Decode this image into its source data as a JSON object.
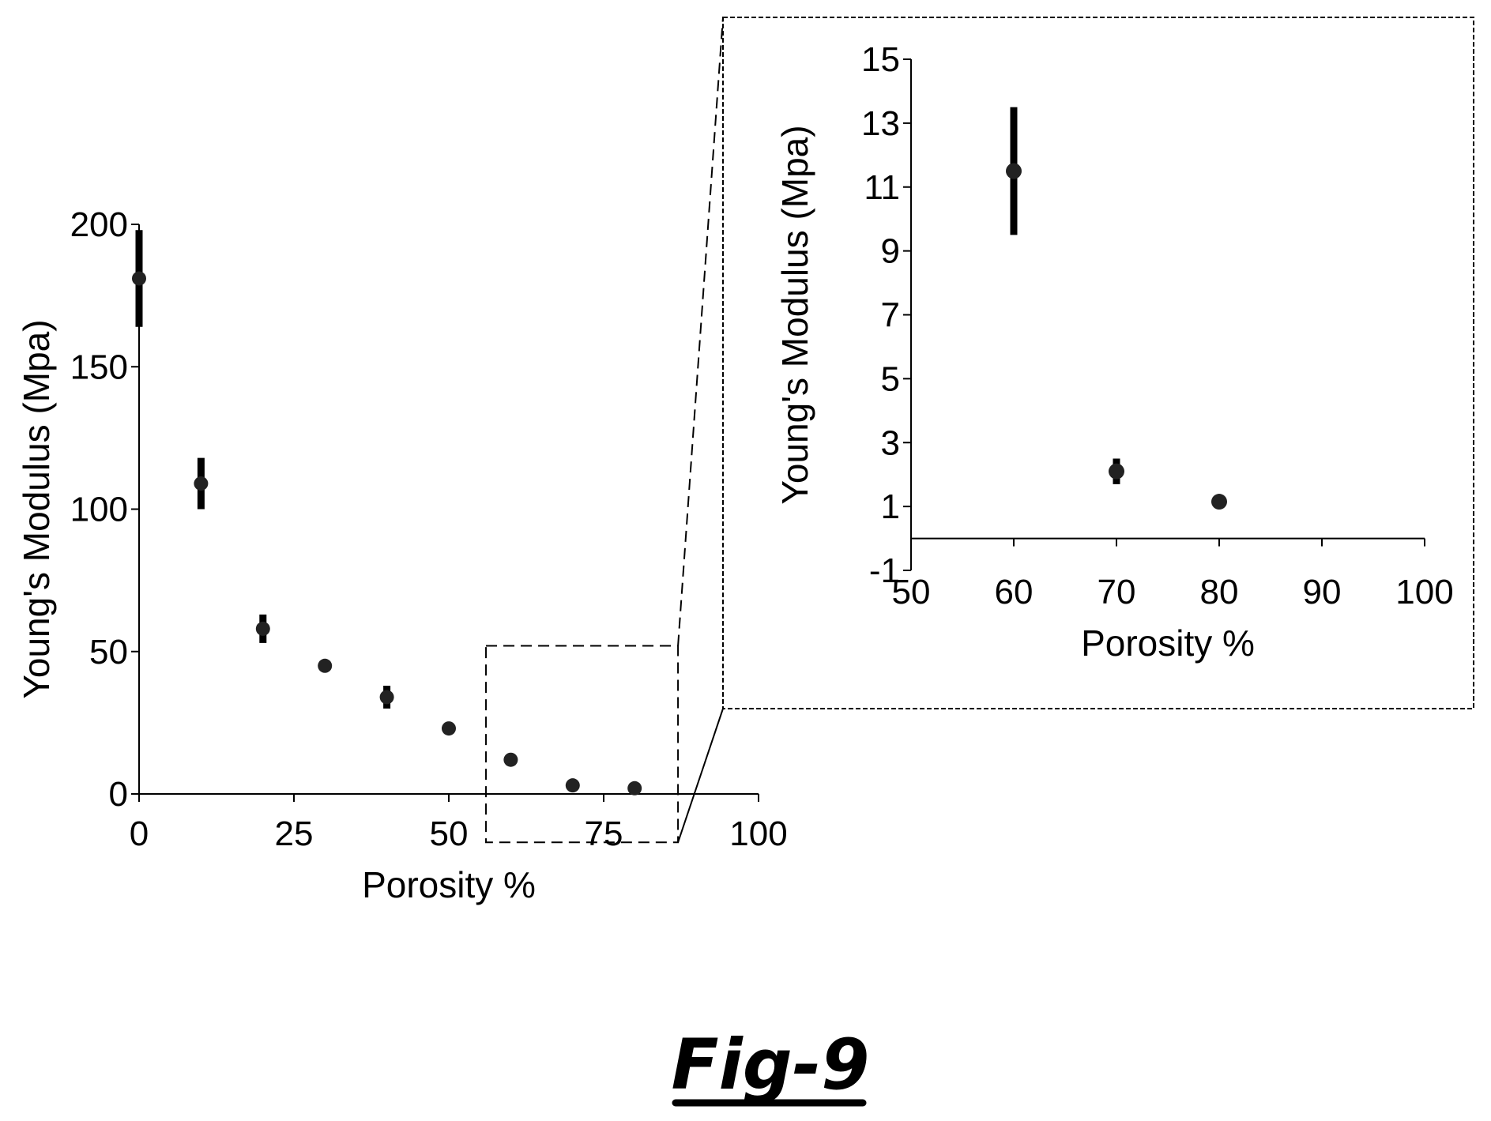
{
  "chart_data": [
    {
      "type": "scatter",
      "title": "",
      "xlabel": "Porosity %",
      "ylabel": "Young's Modulus (Mpa)",
      "xlim": [
        0,
        100
      ],
      "ylim": [
        0,
        200
      ],
      "xticks": [
        0,
        25,
        50,
        75,
        100
      ],
      "yticks": [
        0,
        50,
        100,
        150,
        200
      ],
      "grid": false,
      "legend": "none",
      "series": [
        {
          "x": [
            0,
            10,
            20,
            30,
            40,
            50,
            60,
            70,
            80
          ],
          "y": [
            181,
            109,
            58,
            45,
            34,
            23,
            12,
            3,
            2
          ],
          "err": [
            17,
            9,
            5,
            1,
            4,
            1,
            1,
            1,
            1
          ]
        }
      ],
      "zoom_region": {
        "x": [
          56,
          87
        ],
        "y": [
          -17,
          52
        ]
      }
    },
    {
      "type": "scatter",
      "title": "",
      "xlabel": "Porosity %",
      "ylabel": "Young's Modulus (Mpa)",
      "xlim": [
        50,
        100
      ],
      "ylim": [
        -1,
        15
      ],
      "xticks": [
        50,
        60,
        70,
        80,
        90,
        100
      ],
      "yticks": [
        -1,
        1,
        3,
        5,
        7,
        9,
        11,
        13,
        15
      ],
      "grid": false,
      "legend": "none",
      "series": [
        {
          "x": [
            60,
            70,
            80
          ],
          "y": [
            11.5,
            2.1,
            1.15
          ],
          "err": [
            2.0,
            0.4,
            0.1
          ]
        }
      ]
    }
  ],
  "figure_label": "Fig-9",
  "colors": {
    "ink": "#000000",
    "marker": "#222222",
    "background": "#ffffff"
  }
}
